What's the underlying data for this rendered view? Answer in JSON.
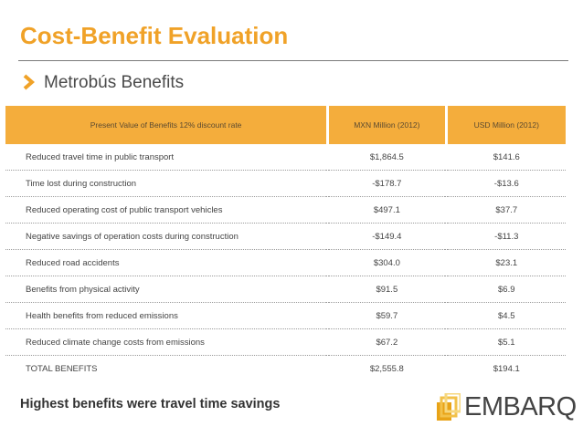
{
  "slide": {
    "title": "Cost-Benefit Evaluation",
    "subtitle": "Metrobús Benefits",
    "footer_note": "Highest benefits were travel time savings",
    "accent_color": "#f0a228",
    "header_color": "#f4ad3c"
  },
  "logo": {
    "text": "EMBARQ"
  },
  "table": {
    "headers": [
      "Present Value of Benefits 12% discount rate",
      "MXN Million (2012)",
      "USD Million (2012)"
    ],
    "rows": [
      {
        "label": "Reduced travel time in public transport",
        "mxn": "$1,864.5",
        "usd": "$141.6"
      },
      {
        "label": "Time lost during construction",
        "mxn": "-$178.7",
        "usd": "-$13.6"
      },
      {
        "label": "Reduced operating cost of public transport vehicles",
        "mxn": "$497.1",
        "usd": "$37.7"
      },
      {
        "label": "Negative savings of operation costs during construction",
        "mxn": "-$149.4",
        "usd": "-$11.3"
      },
      {
        "label": "Reduced road accidents",
        "mxn": "$304.0",
        "usd": "$23.1"
      },
      {
        "label": "Benefits from physical activity",
        "mxn": "$91.5",
        "usd": "$6.9"
      },
      {
        "label": "Health benefits from reduced emissions",
        "mxn": "$59.7",
        "usd": "$4.5"
      },
      {
        "label": "Reduced climate change costs from emissions",
        "mxn": "$67.2",
        "usd": "$5.1"
      },
      {
        "label": "TOTAL BENEFITS",
        "mxn": "$2,555.8",
        "usd": "$194.1"
      }
    ]
  }
}
